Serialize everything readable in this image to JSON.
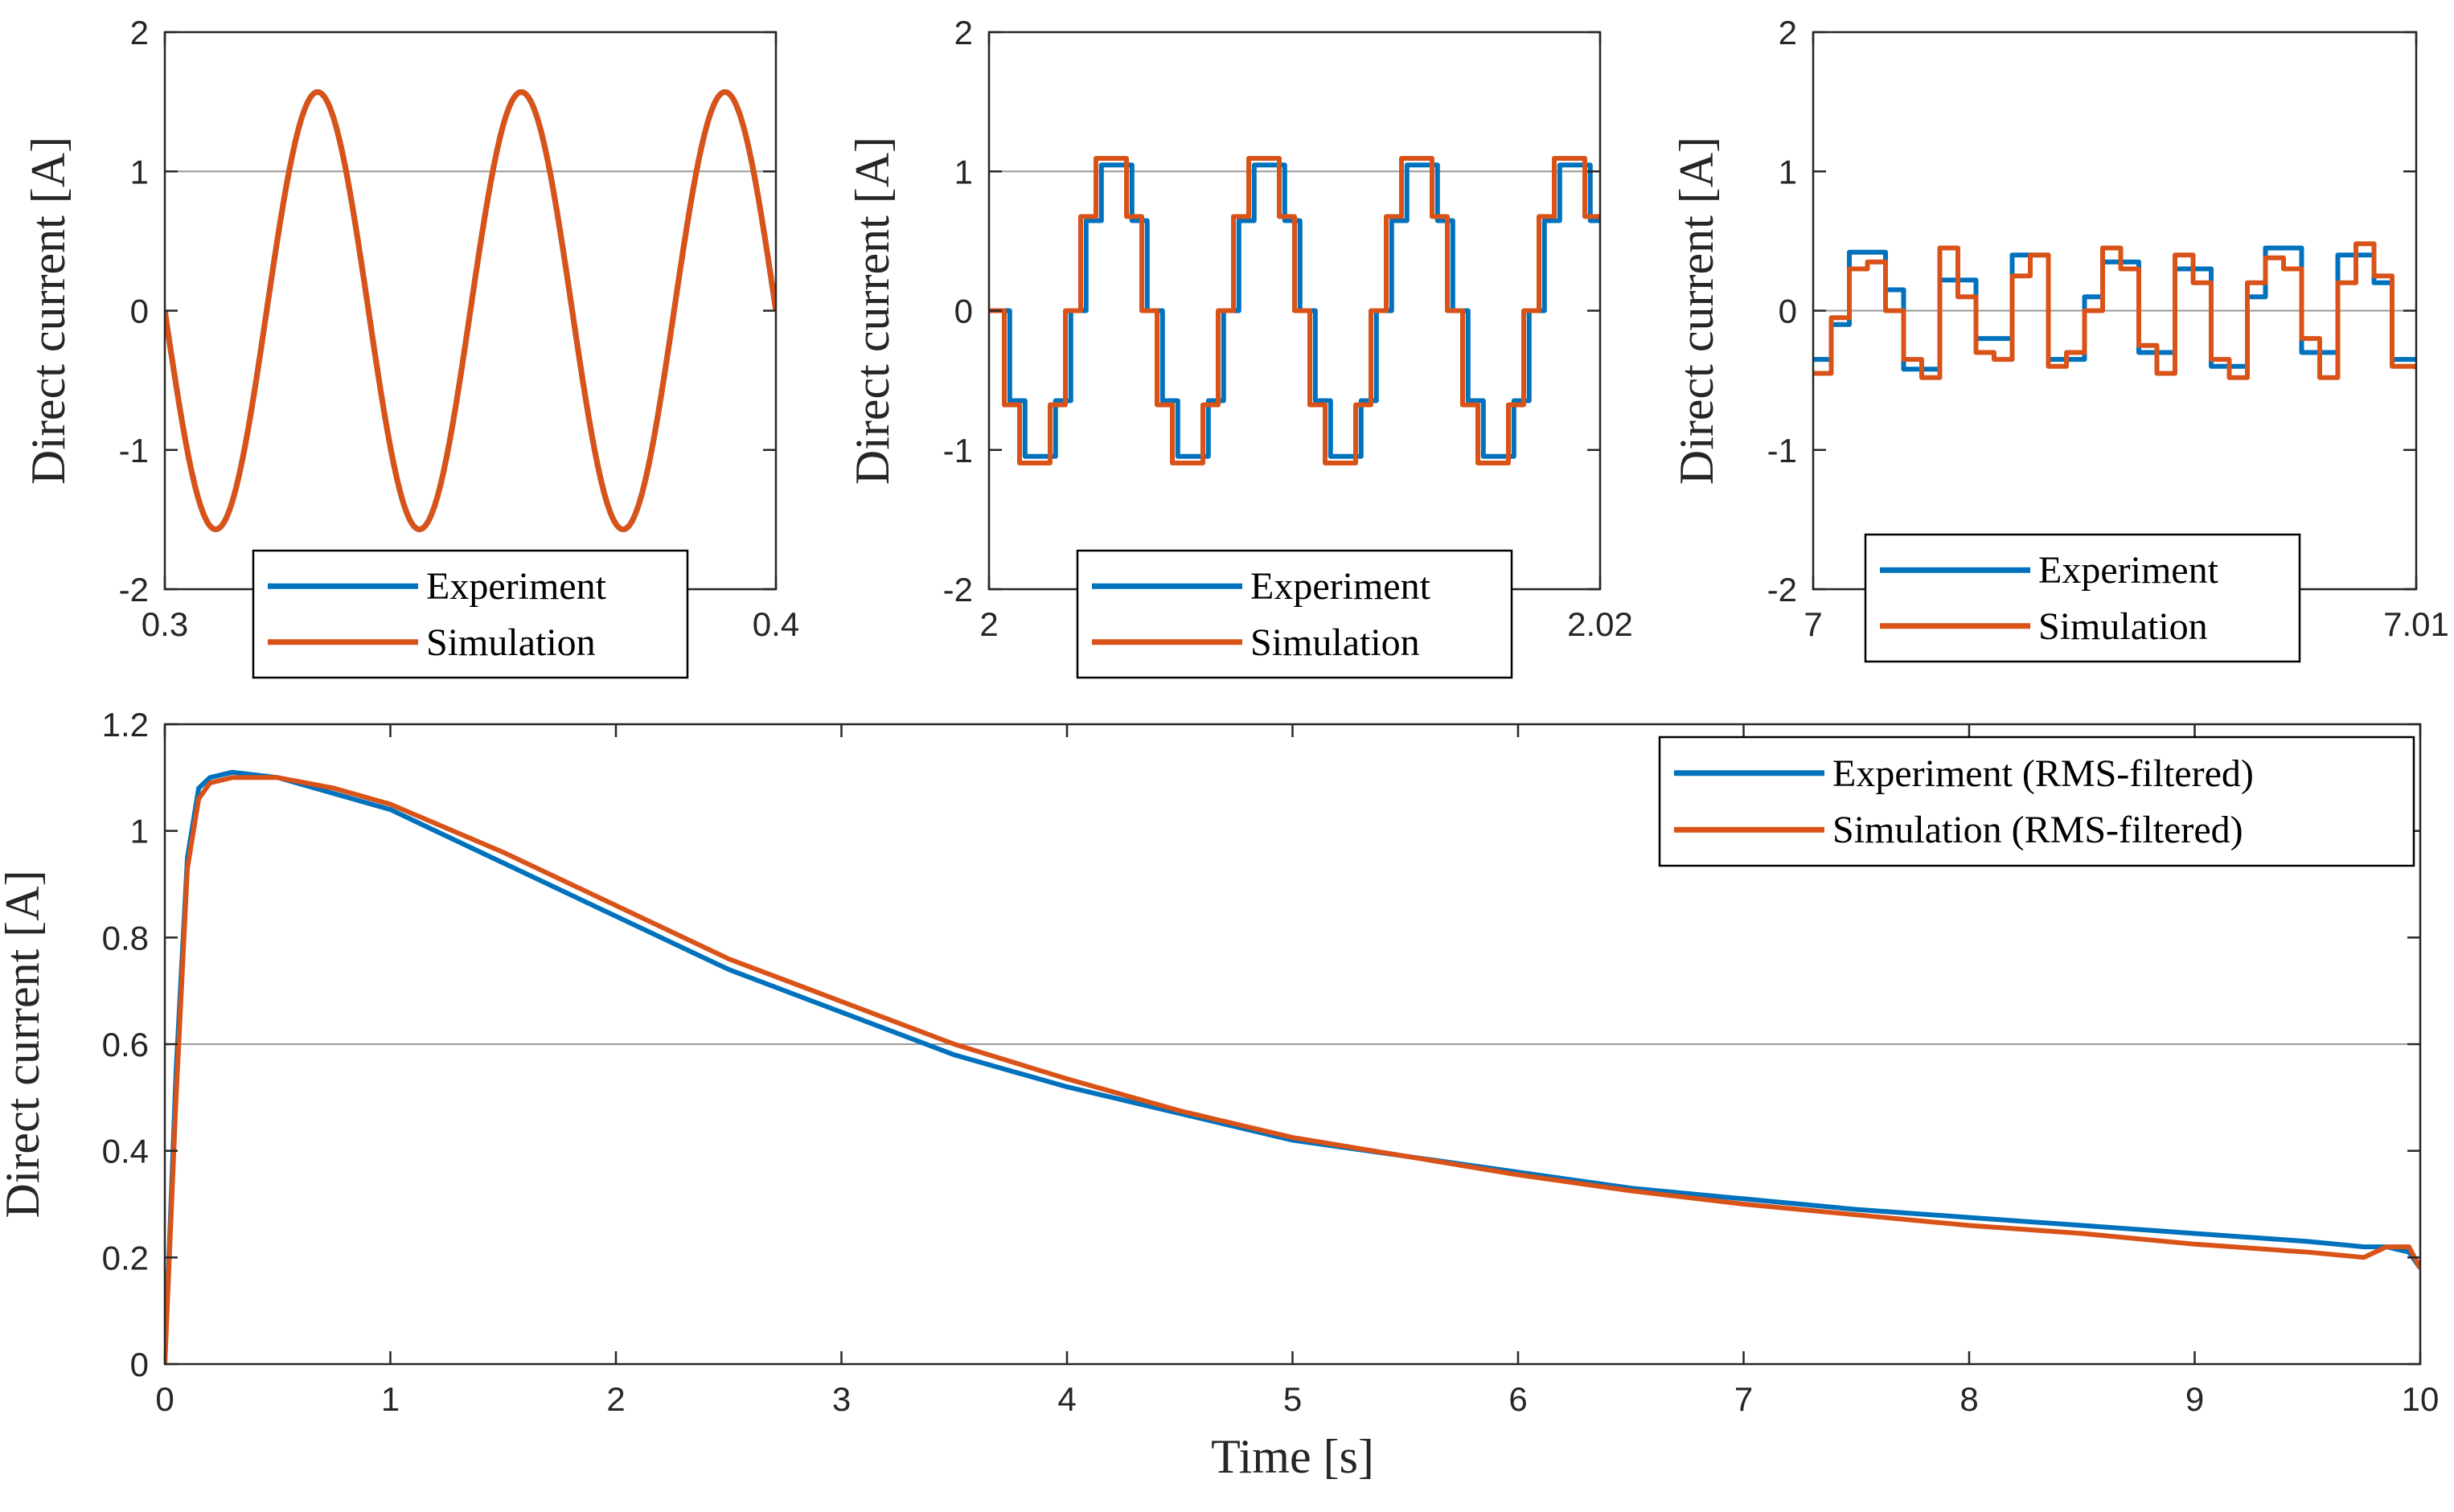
{
  "colors": {
    "experiment": "#0072BD",
    "simulation": "#D95319",
    "axis": "#262626",
    "reference": "#9a9a9a"
  },
  "chart_data": [
    {
      "type": "line",
      "ylabel": "Direct current [A]",
      "xlabel": "",
      "xlim": [
        0.3,
        0.4
      ],
      "ylim": [
        -2,
        2
      ],
      "xticks": [
        0.3,
        0.4
      ],
      "xtick_labels": [
        "0.3",
        "0.4"
      ],
      "yticks": [
        -2,
        -1,
        0,
        1,
        2
      ],
      "ytick_labels": [
        "-2",
        "-1",
        "0",
        "1",
        "2"
      ],
      "legend": {
        "entries": [
          "Experiment",
          "Simulation"
        ],
        "position": "bottom-center"
      },
      "signal": {
        "kind": "sine",
        "amplitude": 1.57,
        "frequency_hz": 30,
        "phase_rad": 0.0,
        "sample_period_s": 0
      },
      "series": [
        {
          "name": "Experiment",
          "x": [
            0.3,
            0.3083,
            0.3167,
            0.325,
            0.3333,
            0.3417,
            0.35,
            0.3583,
            0.3667,
            0.375,
            0.3833,
            0.3917,
            0.4
          ],
          "y": [
            0,
            -1.57,
            0,
            1.57,
            0,
            -1.57,
            0,
            1.57,
            0,
            -1.57,
            0,
            1.57,
            0
          ]
        },
        {
          "name": "Simulation",
          "x": [
            0.3,
            0.3083,
            0.3167,
            0.325,
            0.3333,
            0.3417,
            0.35,
            0.3583,
            0.3667,
            0.375,
            0.3833,
            0.3917,
            0.4
          ],
          "y": [
            0,
            -1.57,
            0,
            1.57,
            0,
            -1.57,
            0,
            1.57,
            0,
            -1.57,
            0,
            1.57,
            0
          ]
        }
      ]
    },
    {
      "type": "line",
      "ylabel": "Direct current [A]",
      "xlabel": "",
      "xlim": [
        2,
        2.02
      ],
      "ylim": [
        -2,
        2
      ],
      "xticks": [
        2,
        2.02
      ],
      "xtick_labels": [
        "2",
        "2.02"
      ],
      "yticks": [
        -2,
        -1,
        0,
        1,
        2
      ],
      "ytick_labels": [
        "-2",
        "-1",
        "0",
        "1",
        "2"
      ],
      "legend": {
        "entries": [
          "Experiment",
          "Simulation"
        ],
        "position": "bottom-center"
      },
      "signal": {
        "kind": "stepped-sine",
        "amplitude_exp": 1.1,
        "amplitude_sim": 1.15,
        "frequency_hz": 200,
        "phase_rad": 0.0,
        "sample_period_s": 0.0005
      },
      "series": [
        {
          "name": "Experiment",
          "x": [
            2,
            2.00125,
            2.0025,
            2.00375,
            2.005,
            2.00625,
            2.0075,
            2.00875,
            2.01,
            2.01125,
            2.0125,
            2.01375,
            2.015,
            2.01625,
            2.0175,
            2.01875,
            2.02
          ],
          "y": [
            0,
            -1.1,
            0,
            1.1,
            0,
            -1.1,
            0,
            1.1,
            0,
            -1.1,
            0,
            1.1,
            0,
            -1.1,
            0,
            1.1,
            0
          ]
        },
        {
          "name": "Simulation",
          "x": [
            2,
            2.00125,
            2.0025,
            2.00375,
            2.005,
            2.00625,
            2.0075,
            2.00875,
            2.01,
            2.01125,
            2.0125,
            2.01375,
            2.015,
            2.01625,
            2.0175,
            2.01875,
            2.02
          ],
          "y": [
            0,
            -1.15,
            0,
            1.15,
            0,
            -1.15,
            0,
            1.15,
            0,
            -1.15,
            0,
            1.15,
            0,
            -1.15,
            0,
            1.15,
            0
          ]
        }
      ]
    },
    {
      "type": "line",
      "ylabel": "Direct current [A]",
      "xlabel": "",
      "xlim": [
        7,
        7.01
      ],
      "ylim": [
        -2,
        2
      ],
      "xticks": [
        7,
        7.01
      ],
      "xtick_labels": [
        "7",
        "7.01"
      ],
      "yticks": [
        -2,
        -1,
        0,
        1,
        2
      ],
      "ytick_labels": [
        "-2",
        "-1",
        "0",
        "1",
        "2"
      ],
      "legend": {
        "entries": [
          "Experiment",
          "Simulation"
        ],
        "position": "bottom-center"
      },
      "series": [
        {
          "name": "Experiment",
          "x": [
            7.0,
            7.0003,
            7.0006,
            7.0009,
            7.0012,
            7.0015,
            7.0018,
            7.0021,
            7.0024,
            7.0027,
            7.003,
            7.0033,
            7.0036,
            7.0039,
            7.0042,
            7.0045,
            7.0048,
            7.0051,
            7.0054,
            7.0057,
            7.006,
            7.0063,
            7.0066,
            7.0069,
            7.0072,
            7.0075,
            7.0078,
            7.0081,
            7.0084,
            7.0087,
            7.009,
            7.0093,
            7.0096,
            7.01
          ],
          "y": [
            -0.35,
            -0.1,
            0.42,
            0.42,
            0.15,
            -0.42,
            -0.42,
            0.22,
            0.22,
            -0.2,
            -0.2,
            0.4,
            0.4,
            -0.35,
            -0.35,
            0.1,
            0.35,
            0.35,
            -0.3,
            -0.3,
            0.3,
            0.3,
            -0.4,
            -0.4,
            0.1,
            0.45,
            0.45,
            -0.3,
            -0.3,
            0.4,
            0.4,
            0.2,
            -0.35,
            -0.35
          ]
        },
        {
          "name": "Simulation",
          "x": [
            7.0,
            7.0003,
            7.0006,
            7.0009,
            7.0012,
            7.0015,
            7.0018,
            7.0021,
            7.0024,
            7.0027,
            7.003,
            7.0033,
            7.0036,
            7.0039,
            7.0042,
            7.0045,
            7.0048,
            7.0051,
            7.0054,
            7.0057,
            7.006,
            7.0063,
            7.0066,
            7.0069,
            7.0072,
            7.0075,
            7.0078,
            7.0081,
            7.0084,
            7.0087,
            7.009,
            7.0093,
            7.0096,
            7.01
          ],
          "y": [
            -0.45,
            -0.05,
            0.3,
            0.35,
            0.0,
            -0.35,
            -0.48,
            0.45,
            0.1,
            -0.3,
            -0.35,
            0.25,
            0.4,
            -0.4,
            -0.3,
            0.0,
            0.45,
            0.3,
            -0.25,
            -0.45,
            0.4,
            0.2,
            -0.35,
            -0.48,
            0.2,
            0.38,
            0.3,
            -0.2,
            -0.48,
            0.2,
            0.48,
            0.25,
            -0.4,
            -0.42
          ]
        }
      ]
    },
    {
      "type": "line",
      "ylabel": "Direct current [A]",
      "xlabel": "Time [s]",
      "xlim": [
        0,
        10
      ],
      "ylim": [
        0,
        1.2
      ],
      "xticks": [
        0,
        1,
        2,
        3,
        4,
        5,
        6,
        7,
        8,
        9,
        10
      ],
      "xtick_labels": [
        "0",
        "1",
        "2",
        "3",
        "4",
        "5",
        "6",
        "7",
        "8",
        "9",
        "10"
      ],
      "yticks": [
        0,
        0.2,
        0.4,
        0.6,
        0.8,
        1,
        1.2
      ],
      "ytick_labels": [
        "0",
        "0.2",
        "0.4",
        "0.6",
        "0.8",
        "1",
        "1.2"
      ],
      "legend": {
        "entries": [
          "Experiment (RMS-filtered)",
          "Simulation (RMS-filtered)"
        ],
        "position": "top-right"
      },
      "series": [
        {
          "name": "Experiment (RMS-filtered)",
          "x": [
            0,
            0.05,
            0.1,
            0.15,
            0.2,
            0.3,
            0.5,
            0.75,
            1,
            1.5,
            2,
            2.5,
            3,
            3.5,
            4,
            4.5,
            5,
            5.5,
            6,
            6.5,
            7,
            7.5,
            8,
            8.5,
            9,
            9.5,
            9.75,
            9.85,
            9.95,
            10
          ],
          "y": [
            0,
            0.55,
            0.95,
            1.08,
            1.1,
            1.11,
            1.1,
            1.07,
            1.04,
            0.94,
            0.84,
            0.74,
            0.66,
            0.58,
            0.52,
            0.47,
            0.42,
            0.39,
            0.36,
            0.33,
            0.31,
            0.29,
            0.275,
            0.26,
            0.245,
            0.23,
            0.22,
            0.22,
            0.21,
            0.18
          ]
        },
        {
          "name": "Simulation (RMS-filtered)",
          "x": [
            0,
            0.05,
            0.1,
            0.15,
            0.2,
            0.3,
            0.5,
            0.75,
            1,
            1.5,
            2,
            2.5,
            3,
            3.5,
            4,
            4.5,
            5,
            5.5,
            6,
            6.5,
            7,
            7.5,
            8,
            8.5,
            9,
            9.5,
            9.75,
            9.85,
            9.95,
            10
          ],
          "y": [
            0,
            0.5,
            0.93,
            1.06,
            1.09,
            1.1,
            1.1,
            1.08,
            1.05,
            0.96,
            0.86,
            0.76,
            0.68,
            0.6,
            0.535,
            0.475,
            0.425,
            0.39,
            0.355,
            0.325,
            0.3,
            0.28,
            0.26,
            0.245,
            0.225,
            0.21,
            0.2,
            0.22,
            0.22,
            0.18
          ]
        }
      ]
    }
  ]
}
